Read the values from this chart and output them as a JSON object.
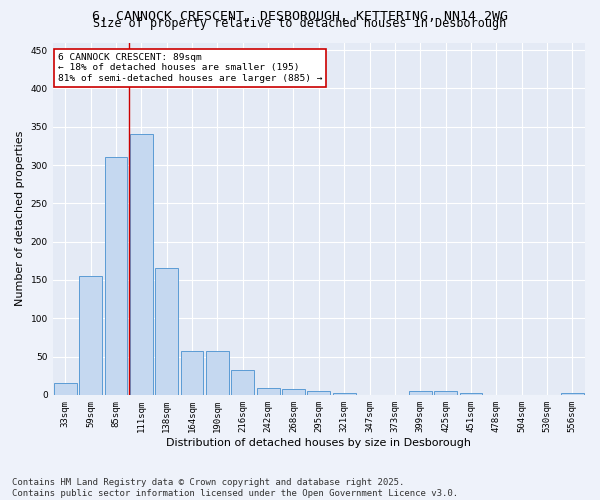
{
  "title_line1": "6, CANNOCK CRESCENT, DESBOROUGH, KETTERING, NN14 2WG",
  "title_line2": "Size of property relative to detached houses in Desborough",
  "xlabel": "Distribution of detached houses by size in Desborough",
  "ylabel": "Number of detached properties",
  "categories": [
    "33sqm",
    "59sqm",
    "85sqm",
    "111sqm",
    "138sqm",
    "164sqm",
    "190sqm",
    "216sqm",
    "242sqm",
    "268sqm",
    "295sqm",
    "321sqm",
    "347sqm",
    "373sqm",
    "399sqm",
    "425sqm",
    "451sqm",
    "478sqm",
    "504sqm",
    "530sqm",
    "556sqm"
  ],
  "values": [
    15,
    155,
    310,
    340,
    165,
    57,
    57,
    33,
    9,
    7,
    5,
    2,
    0,
    0,
    5,
    5,
    2,
    0,
    0,
    0,
    3
  ],
  "bar_color": "#c5d8f0",
  "bar_edge_color": "#5b9bd5",
  "vline_color": "#cc0000",
  "annotation_text": "6 CANNOCK CRESCENT: 89sqm\n← 18% of detached houses are smaller (195)\n81% of semi-detached houses are larger (885) →",
  "annotation_box_color": "#ffffff",
  "annotation_box_edge": "#cc0000",
  "ylim": [
    0,
    460
  ],
  "yticks": [
    0,
    50,
    100,
    150,
    200,
    250,
    300,
    350,
    400,
    450
  ],
  "footer_line1": "Contains HM Land Registry data © Crown copyright and database right 2025.",
  "footer_line2": "Contains public sector information licensed under the Open Government Licence v3.0.",
  "bg_color": "#eef2fa",
  "plot_bg_color": "#e4eaf5",
  "grid_color": "#ffffff",
  "title_fontsize": 9.5,
  "subtitle_fontsize": 8.5,
  "tick_fontsize": 6.5,
  "label_fontsize": 8,
  "footer_fontsize": 6.5
}
